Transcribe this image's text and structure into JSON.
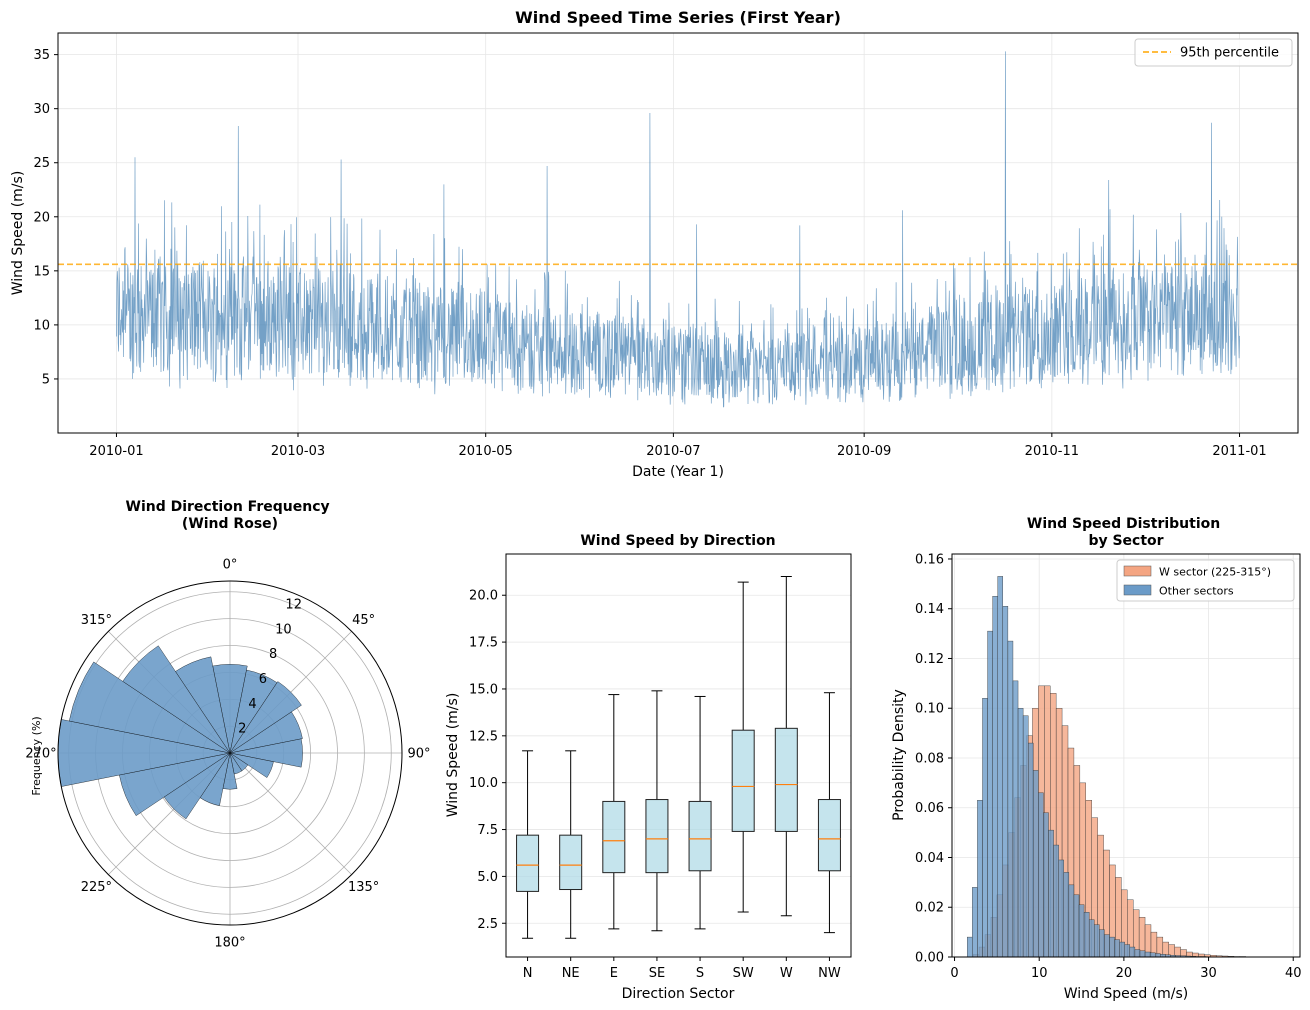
{
  "chart_data": [
    {
      "type": "line",
      "title": "Wind Speed Time Series (First Year)",
      "xlabel": "Date (Year 1)",
      "ylabel": "Wind Speed (m/s)",
      "x_tick_labels": [
        "2010-01",
        "2010-03",
        "2010-05",
        "2010-07",
        "2010-09",
        "2010-11",
        "2011-01"
      ],
      "x_start": "2010-01-01",
      "x_end": "2011-01-01",
      "xlim": [
        "2009-12-13",
        "2011-01-20"
      ],
      "ylim": [
        0,
        37
      ],
      "y_ticks": [
        5,
        10,
        15,
        20,
        25,
        30,
        35
      ],
      "grid": true,
      "legend": "top-right",
      "series": [
        {
          "name": "Wind speed",
          "color": "#4682b4",
          "monthly_mean": [
            10.5,
            10.3,
            9.6,
            8.7,
            7.5,
            6.8,
            6.0,
            5.9,
            6.9,
            8.6,
            9.9,
            10.3
          ],
          "monthly_max": [
            25.5,
            28.4,
            25.3,
            23.0,
            24.7,
            29.6,
            19.3,
            19.2,
            20.6,
            35.3,
            23.4,
            28.7
          ]
        }
      ],
      "reference_line": {
        "name": "95th percentile",
        "value": 15.6,
        "color": "#ffa500",
        "style": "dashed"
      }
    },
    {
      "type": "bar",
      "subtype": "polar",
      "title": "Wind Direction Frequency\n(Wind Rose)",
      "ylabel": "Frequency (%)",
      "angle_labels": [
        "0°",
        "45°",
        "90°",
        "135°",
        "180°",
        "225°",
        "270°",
        "315°"
      ],
      "radial_ticks": [
        2,
        4,
        6,
        8,
        10,
        12
      ],
      "rmax": 12.8,
      "sector_angles_deg": [
        0,
        22.5,
        45,
        67.5,
        90,
        112.5,
        135,
        157.5,
        180,
        202.5,
        225,
        247.5,
        270,
        292.5,
        315,
        337.5
      ],
      "values": [
        6.6,
        6.3,
        6.4,
        5.5,
        5.4,
        3.3,
        1.6,
        1.6,
        2.7,
        4.0,
        5.9,
        8.4,
        12.8,
        12.2,
        9.6,
        7.3
      ],
      "color": "#6b9bc8"
    },
    {
      "type": "box",
      "title": "Wind Speed by Direction",
      "xlabel": "Direction Sector",
      "ylabel": "Wind Speed (m/s)",
      "categories": [
        "N",
        "NE",
        "E",
        "SE",
        "S",
        "SW",
        "W",
        "NW"
      ],
      "ylim": [
        0.7,
        22.2
      ],
      "y_ticks": [
        2.5,
        5.0,
        7.5,
        10.0,
        12.5,
        15.0,
        17.5,
        20.0
      ],
      "y_tick_labels": [
        "2.5",
        "5.0",
        "7.5",
        "10.0",
        "12.5",
        "15.0",
        "17.5",
        "20.0"
      ],
      "boxes": [
        {
          "whislo": 1.7,
          "q1": 4.2,
          "med": 5.6,
          "q3": 7.2,
          "whishi": 11.7
        },
        {
          "whislo": 1.7,
          "q1": 4.3,
          "med": 5.6,
          "q3": 7.2,
          "whishi": 11.7
        },
        {
          "whislo": 2.2,
          "q1": 5.2,
          "med": 6.9,
          "q3": 9.0,
          "whishi": 14.7
        },
        {
          "whislo": 2.1,
          "q1": 5.2,
          "med": 7.0,
          "q3": 9.1,
          "whishi": 14.9
        },
        {
          "whislo": 2.2,
          "q1": 5.3,
          "med": 7.0,
          "q3": 9.0,
          "whishi": 14.6
        },
        {
          "whislo": 3.1,
          "q1": 7.4,
          "med": 9.8,
          "q3": 12.8,
          "whishi": 20.7
        },
        {
          "whislo": 2.9,
          "q1": 7.4,
          "med": 9.9,
          "q3": 12.9,
          "whishi": 21.0
        },
        {
          "whislo": 2.0,
          "q1": 5.3,
          "med": 7.0,
          "q3": 9.1,
          "whishi": 14.8
        }
      ],
      "grid": "y",
      "box_color": "#add8e6",
      "median_color": "#ff7f0e"
    },
    {
      "type": "bar",
      "subtype": "histogram",
      "title": "Wind Speed Distribution\nby Sector",
      "xlabel": "Wind Speed (m/s)",
      "ylabel": "Probability Density",
      "xlim": [
        -0.3,
        40.8
      ],
      "ylim": [
        0,
        0.162
      ],
      "x_ticks": [
        0,
        10,
        20,
        30,
        40
      ],
      "y_ticks": [
        0.0,
        0.02,
        0.04,
        0.06,
        0.08,
        0.1,
        0.12,
        0.14,
        0.16
      ],
      "y_tick_labels": [
        "0.00",
        "0.02",
        "0.04",
        "0.06",
        "0.08",
        "0.10",
        "0.12",
        "0.14",
        "0.16"
      ],
      "grid": true,
      "legend": "top-right",
      "series": [
        {
          "name": "W sector (225-315°)",
          "color": "#f4a582",
          "bin_start": 2.2,
          "bin_width": 0.7,
          "values": [
            0.001,
            0.004,
            0.009,
            0.016,
            0.025,
            0.037,
            0.05,
            0.064,
            0.077,
            0.089,
            0.1,
            0.109,
            0.109,
            0.106,
            0.1,
            0.093,
            0.084,
            0.077,
            0.07,
            0.063,
            0.056,
            0.049,
            0.043,
            0.037,
            0.032,
            0.027,
            0.023,
            0.019,
            0.016,
            0.013,
            0.01,
            0.008,
            0.006,
            0.005,
            0.004,
            0.003,
            0.002,
            0.0016,
            0.0012,
            0.0009,
            0.0007,
            0.0005,
            0.0004,
            0.0003,
            0.0002,
            0.0002,
            0.0001,
            0.0001
          ]
        },
        {
          "name": "Other sectors",
          "color": "#6b9bc8",
          "bin_start": 1.5,
          "bin_width": 0.6,
          "values": [
            0.008,
            0.028,
            0.063,
            0.104,
            0.131,
            0.145,
            0.153,
            0.141,
            0.127,
            0.111,
            0.1,
            0.097,
            0.086,
            0.075,
            0.066,
            0.058,
            0.051,
            0.045,
            0.039,
            0.034,
            0.029,
            0.025,
            0.021,
            0.018,
            0.015,
            0.013,
            0.011,
            0.009,
            0.008,
            0.007,
            0.006,
            0.005,
            0.004,
            0.003,
            0.0025,
            0.002,
            0.0017,
            0.0014,
            0.0011,
            0.0009,
            0.0007,
            0.0006,
            0.0005,
            0.0004,
            0.0003,
            0.0002,
            0.0002,
            0.0001,
            0.0001,
            0.0001,
            0.0001,
            0.0001,
            0.0001,
            0.0001,
            0.0001,
            0.0001
          ]
        }
      ]
    }
  ]
}
